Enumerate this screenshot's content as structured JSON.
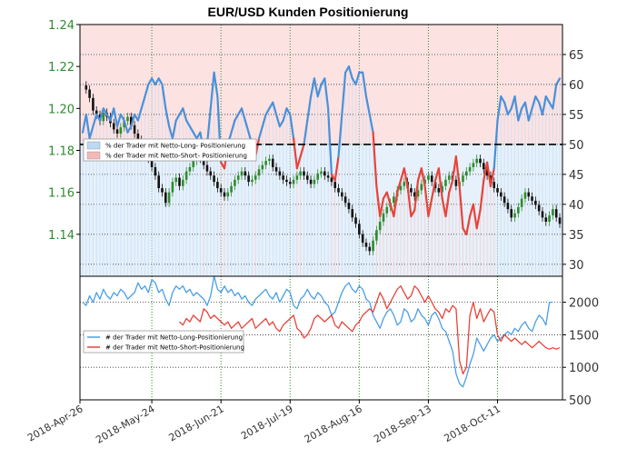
{
  "chart_data": [
    {
      "type": "line",
      "title": "EUR/USD Kunden Positionierung",
      "panel": "upper",
      "left_axis": {
        "ylim": [
          1.12,
          1.24
        ],
        "ticks": [
          "1.14",
          "1.16",
          "1.18",
          "1.20",
          "1.22",
          "1.24"
        ],
        "color": "#2e8b2e"
      },
      "right_axis": {
        "ylim": [
          28,
          70
        ],
        "ticks": [
          "30",
          "35",
          "40",
          "45",
          "50",
          "55",
          "60",
          "65"
        ]
      },
      "x_ticks": [
        "2018-Apr-26",
        "2018-May-24",
        "2018-Jun-21",
        "2018-Jul-19",
        "2018-Aug-16",
        "2018-Sep-13",
        "2018-Oct-11"
      ],
      "reference_line": 50,
      "legend": {
        "placement": "middle-left",
        "entries": [
          {
            "label": "% der Trader mit Netto-Long- Positionierung",
            "color": "#bcd9f5"
          },
          {
            "label": "% der Trader mit Netto-Short- Positionierung",
            "color": "#f5b8b8"
          }
        ]
      },
      "series": [
        {
          "role": "net-long-percent",
          "axis": "right",
          "above_50_color": "#4a90d9",
          "below_50_color": "#e8433a",
          "values": [
            52,
            55,
            51,
            53,
            55,
            54,
            56,
            55,
            54,
            56,
            53,
            55,
            54,
            52,
            53,
            55,
            54,
            56,
            58,
            60,
            61,
            60,
            61,
            60,
            56,
            53,
            51,
            54,
            55,
            56,
            54,
            53,
            52,
            51,
            52,
            49,
            50,
            56,
            62,
            58,
            47,
            46,
            50,
            52,
            54,
            55,
            56,
            54,
            52,
            50,
            48,
            51,
            53,
            55,
            56,
            57,
            55,
            53,
            54,
            56,
            55,
            51,
            46,
            48,
            50,
            54,
            58,
            61,
            58,
            60,
            61,
            56,
            45,
            44,
            48,
            55,
            62,
            63,
            61,
            60,
            62,
            62,
            58,
            55,
            52,
            43,
            38,
            41,
            42,
            40,
            38,
            42,
            44,
            46,
            43,
            38,
            39,
            44,
            46,
            43,
            38,
            41,
            44,
            46,
            41,
            38,
            42,
            44,
            48,
            43,
            36,
            35,
            38,
            40,
            36,
            39,
            44,
            47,
            43,
            46,
            54,
            58,
            57,
            55,
            56,
            58,
            54,
            56,
            57,
            54,
            56,
            58,
            57,
            55,
            58,
            57,
            56,
            60,
            61
          ]
        },
        {
          "role": "price",
          "axis": "left",
          "type": "candlestick",
          "up_color": "#2e8b2e",
          "down_color": "#111111",
          "values": [
            1.211,
            1.209,
            1.205,
            1.199,
            1.197,
            1.194,
            1.198,
            1.196,
            1.193,
            1.19,
            1.188,
            1.191,
            1.194,
            1.196,
            1.192,
            1.188,
            1.185,
            1.183,
            1.18,
            1.176,
            1.172,
            1.168,
            1.162,
            1.16,
            1.155,
            1.16,
            1.165,
            1.167,
            1.163,
            1.166,
            1.17,
            1.172,
            1.175,
            1.178,
            1.176,
            1.173,
            1.17,
            1.168,
            1.165,
            1.162,
            1.16,
            1.158,
            1.16,
            1.163,
            1.166,
            1.168,
            1.17,
            1.168,
            1.165,
            1.166,
            1.168,
            1.171,
            1.173,
            1.175,
            1.176,
            1.172,
            1.17,
            1.168,
            1.166,
            1.165,
            1.164,
            1.166,
            1.168,
            1.17,
            1.168,
            1.166,
            1.164,
            1.166,
            1.169,
            1.17,
            1.168,
            1.167,
            1.165,
            1.162,
            1.16,
            1.158,
            1.155,
            1.152,
            1.148,
            1.145,
            1.14,
            1.136,
            1.134,
            1.132,
            1.137,
            1.142,
            1.146,
            1.15,
            1.153,
            1.155,
            1.158,
            1.161,
            1.163,
            1.165,
            1.162,
            1.16,
            1.158,
            1.161,
            1.164,
            1.166,
            1.168,
            1.165,
            1.162,
            1.16,
            1.163,
            1.166,
            1.168,
            1.166,
            1.163,
            1.165,
            1.168,
            1.17,
            1.172,
            1.174,
            1.176,
            1.174,
            1.171,
            1.168,
            1.165,
            1.162,
            1.16,
            1.158,
            1.155,
            1.152,
            1.148,
            1.15,
            1.153,
            1.157,
            1.16,
            1.158,
            1.156,
            1.154,
            1.151,
            1.148,
            1.146,
            1.149,
            1.152,
            1.148,
            1.145
          ]
        }
      ]
    },
    {
      "type": "line",
      "panel": "lower",
      "right_axis": {
        "ylim": [
          500,
          2400
        ],
        "ticks": [
          "500",
          "1000",
          "1500",
          "2000"
        ]
      },
      "legend": {
        "placement": "middle-left",
        "entries": [
          {
            "label": "# der Trader mit Netto-Long-Positionierung",
            "color": "#4a9fe8"
          },
          {
            "label": "# der Trader mit Netto-Short-Positionierung",
            "color": "#e8433a"
          }
        ]
      },
      "series": [
        {
          "name": "# der Trader mit Netto-Long-Positionierung",
          "color": "#4a9fe8",
          "values": [
            2000,
            1950,
            2100,
            2000,
            2150,
            2050,
            2200,
            2100,
            2050,
            2150,
            2100,
            2200,
            2150,
            2050,
            2100,
            2150,
            2300,
            2200,
            2250,
            2150,
            2350,
            2300,
            2150,
            2200,
            2050,
            1950,
            2150,
            2250,
            2200,
            2250,
            2150,
            2200,
            2100,
            2150,
            2100,
            2050,
            1950,
            2100,
            2400,
            2200,
            2150,
            2250,
            2150,
            2200,
            2100,
            2150,
            2050,
            2100,
            2000,
            1950,
            2050,
            2100,
            2150,
            2200,
            2100,
            2050,
            2150,
            2000,
            2100,
            2200,
            2150,
            1950,
            1900,
            2050,
            2100,
            2200,
            2100,
            2050,
            2150,
            2100,
            2000,
            1950,
            1800,
            1850,
            2000,
            2150,
            2250,
            2300,
            2200,
            2150,
            2250,
            2200,
            2050,
            2000,
            1800,
            1700,
            1600,
            1750,
            1850,
            1900,
            1800,
            1650,
            1700,
            1900,
            1850,
            1700,
            1750,
            1900,
            1800,
            1750,
            1650,
            1800,
            1850,
            1750,
            1600,
            1550,
            1400,
            1250,
            900,
            750,
            700,
            850,
            1050,
            1200,
            1450,
            1350,
            1250,
            1350,
            1450,
            1500,
            1400,
            1450,
            1500,
            1550,
            1500,
            1600,
            1550,
            1650,
            1700,
            1600,
            1550,
            1700,
            1800,
            1750,
            1650,
            2000,
            2000
          ]
        },
        {
          "name": "# der Trader mit Netto-Short-Positionierung",
          "color": "#e8433a",
          "values": [
            null,
            null,
            null,
            null,
            null,
            null,
            null,
            null,
            null,
            null,
            null,
            null,
            null,
            null,
            null,
            null,
            null,
            null,
            null,
            null,
            null,
            null,
            null,
            null,
            null,
            null,
            null,
            null,
            1700,
            1650,
            1750,
            1700,
            1800,
            1750,
            1700,
            1900,
            1850,
            1750,
            1800,
            1750,
            1700,
            1650,
            1700,
            1600,
            1650,
            1700,
            1600,
            1650,
            1700,
            1750,
            1600,
            1650,
            1700,
            1750,
            1650,
            1700,
            1600,
            1550,
            1650,
            1700,
            1750,
            1800,
            1600,
            1550,
            1450,
            1500,
            1600,
            1750,
            1800,
            1750,
            1700,
            1750,
            1800,
            1650,
            1600,
            1700,
            1650,
            1600,
            1550,
            1650,
            1700,
            1800,
            1850,
            1900,
            1850,
            2000,
            2150,
            2050,
            1900,
            2000,
            2100,
            2200,
            2250,
            2150,
            2050,
            2100,
            2250,
            2200,
            2100,
            2000,
            2100,
            2000,
            1900,
            1850,
            1750,
            1900,
            1850,
            1950,
            1900,
            1100,
            900,
            1000,
            1800,
            2000,
            1750,
            1900,
            1700,
            1800,
            1900,
            1850,
            1500,
            1400,
            1500,
            1450,
            1400,
            1450,
            1400,
            1350,
            1400,
            1350,
            1300,
            1350,
            1400,
            1350,
            1300,
            1280,
            1300,
            1280,
            1300
          ]
        }
      ]
    }
  ]
}
